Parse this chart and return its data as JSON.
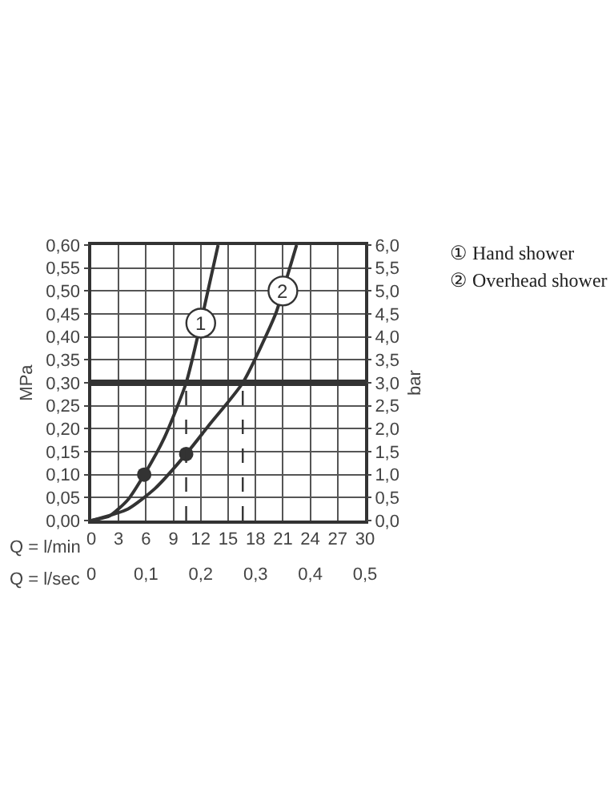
{
  "chart_data": {
    "type": "line",
    "xlabel": "Q = l/min",
    "x2label": "Q = l/sec",
    "ylabel": "MPa",
    "y2label": "bar",
    "xlim": [
      0,
      30
    ],
    "xticks": [
      0,
      3,
      6,
      9,
      12,
      15,
      18,
      21,
      24,
      27,
      30
    ],
    "x2lim": [
      0,
      0.5
    ],
    "x2ticks": [
      0,
      {
        "value": 0.1,
        "label": "0,1"
      },
      {
        "value": 0.2,
        "label": "0,2"
      },
      {
        "value": 0.3,
        "label": "0,3"
      },
      {
        "value": 0.4,
        "label": "0,4"
      },
      {
        "value": 0.5,
        "label": "0,5"
      }
    ],
    "ylim": [
      0,
      0.6
    ],
    "yticks": [
      {
        "value": 0,
        "label": "0,00"
      },
      {
        "value": 0.05,
        "label": "0,05"
      },
      {
        "value": 0.1,
        "label": "0,10"
      },
      {
        "value": 0.15,
        "label": "0,15"
      },
      {
        "value": 0.2,
        "label": "0,20"
      },
      {
        "value": 0.25,
        "label": "0,25"
      },
      {
        "value": 0.3,
        "label": "0,30"
      },
      {
        "value": 0.35,
        "label": "0,35"
      },
      {
        "value": 0.4,
        "label": "0,40"
      },
      {
        "value": 0.45,
        "label": "0,45"
      },
      {
        "value": 0.5,
        "label": "0,50"
      },
      {
        "value": 0.55,
        "label": "0,55"
      },
      {
        "value": 0.6,
        "label": "0,60"
      }
    ],
    "y2lim": [
      0,
      6
    ],
    "y2ticks": [
      {
        "value": 0,
        "label": "0,0"
      },
      {
        "value": 0.5,
        "label": "0,5"
      },
      {
        "value": 1,
        "label": "1,0"
      },
      {
        "value": 1.5,
        "label": "1,5"
      },
      {
        "value": 2,
        "label": "2,0"
      },
      {
        "value": 2.5,
        "label": "2,5"
      },
      {
        "value": 3,
        "label": "3,0"
      },
      {
        "value": 3.5,
        "label": "3,5"
      },
      {
        "value": 4,
        "label": "4,0"
      },
      {
        "value": 4.5,
        "label": "4,5"
      },
      {
        "value": 5,
        "label": "5,0"
      },
      {
        "value": 5.5,
        "label": "5,5"
      },
      {
        "value": 6,
        "label": "6,0"
      }
    ],
    "grid": true,
    "legend": false,
    "marker": "none",
    "line_style": "solid",
    "series": [
      {
        "name": "1",
        "color": "#333333",
        "x": [
          0,
          2,
          4,
          5.8,
          8,
          10.4,
          12,
          13.9
        ],
        "values": [
          0,
          0.01,
          0.045,
          0.1,
          0.18,
          0.3,
          0.43,
          0.6
        ]
      },
      {
        "name": "2",
        "color": "#333333",
        "x": [
          0,
          4,
          7,
          10.4,
          13,
          16.6,
          20.2,
          21,
          22.5
        ],
        "values": [
          0,
          0.025,
          0.07,
          0.145,
          0.21,
          0.3,
          0.45,
          0.5,
          0.6
        ]
      },
      {
        "type": "scatter",
        "marker": "circle",
        "color": "#333333",
        "x": [
          5.8,
          10.4
        ],
        "values": [
          0.1,
          0.145
        ]
      },
      {
        "line_style": "dashed",
        "color": "#333333",
        "x": [
          10.4,
          10.4
        ],
        "values": [
          0,
          0.3
        ]
      },
      {
        "line_style": "dashed",
        "color": "#333333",
        "x": [
          16.6,
          16.6
        ],
        "values": [
          0,
          0.3
        ]
      }
    ],
    "ref_lines": [
      {
        "axis": "y",
        "value": 0.3,
        "color": "#333333"
      }
    ],
    "annotations": [
      "① Hand shower",
      "② Overhead shower"
    ]
  }
}
